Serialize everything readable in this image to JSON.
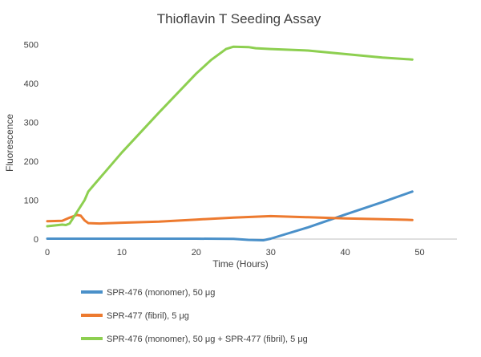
{
  "chart_data": {
    "type": "line",
    "title": "Thioflavin T Seeding Assay",
    "xlabel": "Time (Hours)",
    "ylabel": "Fluorescence",
    "xlim": [
      0,
      55
    ],
    "ylim": [
      0,
      550
    ],
    "xticks": [
      "0",
      "10",
      "20",
      "30",
      "40",
      "50"
    ],
    "yticks": [
      "0",
      "100",
      "200",
      "300",
      "400",
      "500"
    ],
    "grid": false,
    "legend_position": "bottom",
    "series": [
      {
        "name": "SPR-476 (monomer), 50 μg",
        "color": "#4a90c9",
        "points": [
          [
            0,
            1
          ],
          [
            10,
            1
          ],
          [
            20,
            1
          ],
          [
            25,
            0.5
          ],
          [
            27,
            -2
          ],
          [
            29,
            -3
          ],
          [
            30,
            1
          ],
          [
            35,
            30
          ],
          [
            40,
            63
          ],
          [
            45,
            95
          ],
          [
            49,
            122
          ]
        ]
      },
      {
        "name": "SPR-477 (fibril), 5 μg",
        "color": "#ed7a2f",
        "points": [
          [
            0,
            46
          ],
          [
            2,
            47
          ],
          [
            3,
            55
          ],
          [
            4,
            62
          ],
          [
            4.5,
            60
          ],
          [
            5,
            48
          ],
          [
            5.5,
            41
          ],
          [
            7,
            40
          ],
          [
            10,
            42
          ],
          [
            15,
            45
          ],
          [
            20,
            50
          ],
          [
            25,
            55
          ],
          [
            30,
            59
          ],
          [
            35,
            56
          ],
          [
            40,
            53
          ],
          [
            45,
            51
          ],
          [
            49,
            49
          ]
        ]
      },
      {
        "name": "SPR-476 (monomer), 50 μg + SPR-477 (fibril), 5 μg",
        "color": "#8dcf50",
        "points": [
          [
            0,
            33
          ],
          [
            1,
            35
          ],
          [
            2,
            37
          ],
          [
            2.5,
            36
          ],
          [
            3,
            40
          ],
          [
            4,
            70
          ],
          [
            5,
            100
          ],
          [
            5.5,
            122
          ],
          [
            6,
            133
          ],
          [
            10,
            222
          ],
          [
            15,
            325
          ],
          [
            20,
            425
          ],
          [
            22,
            460
          ],
          [
            24,
            488
          ],
          [
            25,
            494
          ],
          [
            27,
            493
          ],
          [
            28,
            490
          ],
          [
            30,
            488
          ],
          [
            35,
            484
          ],
          [
            40,
            475
          ],
          [
            45,
            466
          ],
          [
            49,
            461
          ]
        ]
      }
    ]
  }
}
